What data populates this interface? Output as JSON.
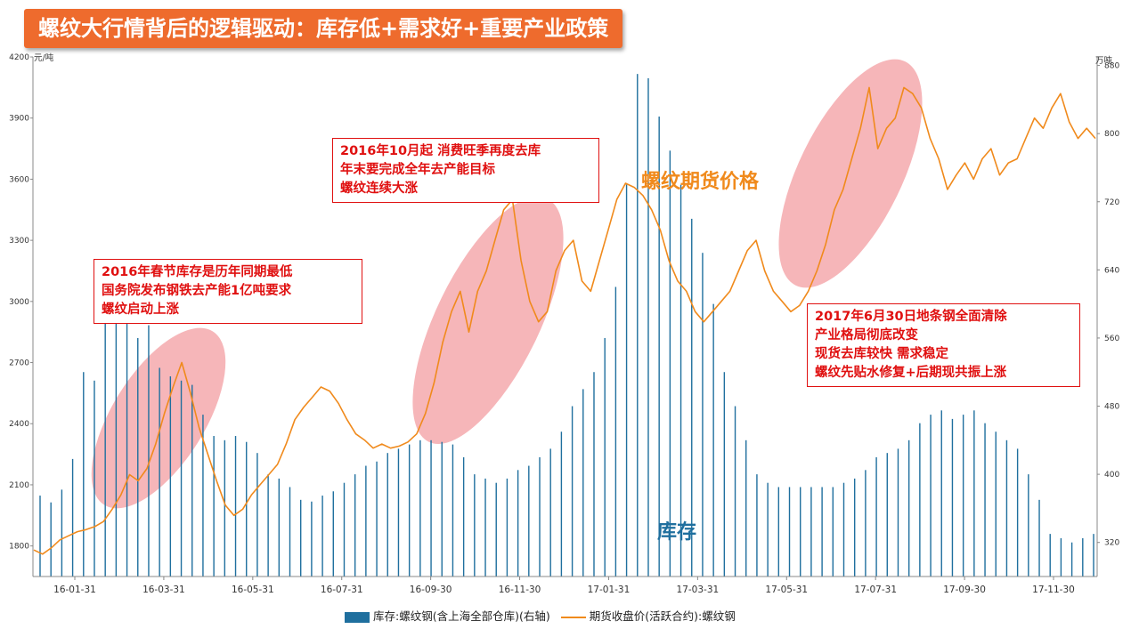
{
  "title": "螺纹大行情背后的逻辑驱动：库存低+需求好+重要产业政策",
  "chart_data": {
    "type": "bar+line",
    "title": "螺纹大行情背后的逻辑驱动：库存低+需求好+重要产业政策",
    "y_left": {
      "label": "元/吨",
      "range": [
        1650,
        4200
      ],
      "ticks": [
        1800,
        2100,
        2400,
        2700,
        3000,
        3300,
        3600,
        3900,
        4200
      ],
      "tick_labels": [
        "1800",
        "2100",
        "2400",
        "2700",
        "3000",
        "3300",
        "3600",
        "3900",
        "4200"
      ]
    },
    "y_right": {
      "label": "万吨",
      "range": [
        280,
        890
      ],
      "ticks": [
        320,
        400,
        480,
        560,
        640,
        720,
        800,
        880
      ],
      "tick_labels": [
        "320",
        "400",
        "480",
        "560",
        "640",
        "720",
        "800",
        "880"
      ]
    },
    "x_ticks": [
      "16-01-31",
      "16-03-31",
      "16-05-31",
      "16-07-31",
      "16-09-30",
      "16-11-30",
      "17-01-31",
      "17-03-31",
      "17-05-31",
      "17-07-31",
      "17-09-30",
      "17-11-30"
    ],
    "series": [
      {
        "name": "库存:螺纹钢(含上海全部仓库)(右轴)",
        "kind": "bar",
        "axis": "right",
        "color": "#1f6f9e",
        "values": [
          375,
          367,
          382,
          418,
          520,
          510,
          640,
          600,
          590,
          560,
          575,
          525,
          515,
          510,
          505,
          470,
          445,
          440,
          445,
          438,
          425,
          400,
          395,
          385,
          370,
          368,
          375,
          380,
          390,
          400,
          410,
          415,
          425,
          430,
          435,
          440,
          440,
          438,
          435,
          420,
          400,
          395,
          390,
          395,
          405,
          410,
          420,
          430,
          450,
          480,
          500,
          520,
          560,
          620,
          740,
          870,
          865,
          820,
          780,
          740,
          700,
          660,
          600,
          520,
          480,
          440,
          400,
          390,
          385,
          385,
          385,
          385,
          385,
          385,
          390,
          395,
          405,
          420,
          425,
          430,
          440,
          460,
          470,
          475,
          465,
          470,
          475,
          460,
          450,
          440,
          430,
          400,
          370,
          330,
          325,
          320,
          325,
          330
        ]
      },
      {
        "name": "期货收盘价(活跃合约):螺纹钢",
        "kind": "line",
        "axis": "left",
        "color": "#f08a1c",
        "values": [
          1780,
          1760,
          1790,
          1830,
          1850,
          1870,
          1880,
          1895,
          1920,
          1980,
          2050,
          2150,
          2120,
          2180,
          2300,
          2450,
          2580,
          2700,
          2550,
          2380,
          2250,
          2120,
          2000,
          1950,
          1980,
          2050,
          2100,
          2150,
          2200,
          2300,
          2420,
          2480,
          2530,
          2580,
          2560,
          2500,
          2420,
          2350,
          2320,
          2280,
          2300,
          2280,
          2290,
          2310,
          2350,
          2450,
          2600,
          2800,
          2950,
          3050,
          2850,
          3050,
          3150,
          3300,
          3450,
          3500,
          3200,
          3000,
          2900,
          2950,
          3150,
          3250,
          3300,
          3100,
          3050,
          3200,
          3350,
          3500,
          3580,
          3560,
          3520,
          3450,
          3350,
          3200,
          3100,
          3050,
          2950,
          2900,
          2950,
          3000,
          3050,
          3150,
          3250,
          3300,
          3150,
          3050,
          3000,
          2950,
          2980,
          3050,
          3150,
          3280,
          3450,
          3550,
          3700,
          3850,
          4050,
          3750,
          3850,
          3900,
          4050,
          4020,
          3950,
          3800,
          3700,
          3550,
          3620,
          3680,
          3600,
          3700,
          3750,
          3620,
          3680,
          3700,
          3800,
          3900,
          3850,
          3950,
          4020,
          3880,
          3800,
          3850,
          3800
        ]
      }
    ],
    "annotations": [
      "2016年春节库存是历年同期最低",
      "2016年10月起 消费旺季再度去库",
      "2017年6月30日地条钢全面清除",
      "螺纹期货价格",
      "库存"
    ]
  },
  "callout_1": {
    "line1": "2016年春节库存是历年同期最低",
    "line2": "国务院发布钢铁去产能1亿吨要求",
    "line3": "螺纹启动上涨"
  },
  "callout_2": {
    "line1": "2016年10月起 消费旺季再度去库",
    "line2": "年末要完成全年去产能目标",
    "line3": "螺纹连续大涨"
  },
  "callout_3": {
    "line1": "2017年6月30日地条钢全面清除",
    "line2": "产业格局彻底改变",
    "line3": "现货去库较快 需求稳定",
    "line4": "螺纹先贴水修复+后期现共振上涨"
  },
  "labels": {
    "price": "螺纹期货价格",
    "inventory": "库存"
  },
  "legend": {
    "bar": "库存:螺纹钢(含上海全部仓库)(右轴)",
    "line": "期货收盘价(活跃合约):螺纹钢"
  },
  "colors": {
    "bar": "#1f6f9e",
    "line": "#f08a1c",
    "callout": "#e01010",
    "highlight": "#f4a4a8",
    "banner": "#ee6b2d"
  }
}
